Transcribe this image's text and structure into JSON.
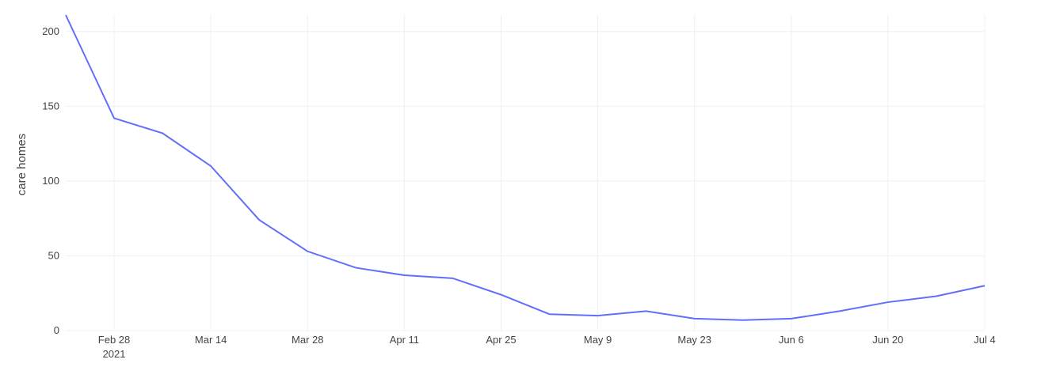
{
  "chart_data": {
    "type": "line",
    "y_label": "care homes",
    "x": [
      "2021-02-21",
      "2021-02-28",
      "2021-03-07",
      "2021-03-14",
      "2021-03-21",
      "2021-03-28",
      "2021-04-04",
      "2021-04-11",
      "2021-04-18",
      "2021-04-25",
      "2021-05-02",
      "2021-05-09",
      "2021-05-16",
      "2021-05-23",
      "2021-05-30",
      "2021-06-06",
      "2021-06-13",
      "2021-06-20",
      "2021-06-27",
      "2021-07-04"
    ],
    "series": [
      {
        "color": "#636efa",
        "values": [
          211,
          142,
          132,
          110,
          74,
          53,
          42,
          37,
          35,
          24,
          11,
          10,
          13,
          8,
          7,
          8,
          13,
          19,
          23,
          30
        ]
      }
    ],
    "xlim": [
      "2021-02-21",
      "2021-07-04"
    ],
    "xticks": [
      {
        "value": "2021-02-28",
        "label": "Feb 28\n2021"
      },
      {
        "value": "2021-03-14",
        "label": "Mar 14"
      },
      {
        "value": "2021-03-28",
        "label": "Mar 28"
      },
      {
        "value": "2021-04-11",
        "label": "Apr 11"
      },
      {
        "value": "2021-04-25",
        "label": "Apr 25"
      },
      {
        "value": "2021-05-09",
        "label": "May 9"
      },
      {
        "value": "2021-05-23",
        "label": "May 23"
      },
      {
        "value": "2021-06-06",
        "label": "Jun 6"
      },
      {
        "value": "2021-06-20",
        "label": "Jun 20"
      },
      {
        "value": "2021-07-04",
        "label": "Jul 4"
      }
    ],
    "ylim": [
      0,
      211
    ],
    "yticks": [
      0,
      50,
      100,
      150,
      200
    ],
    "grid": true
  }
}
